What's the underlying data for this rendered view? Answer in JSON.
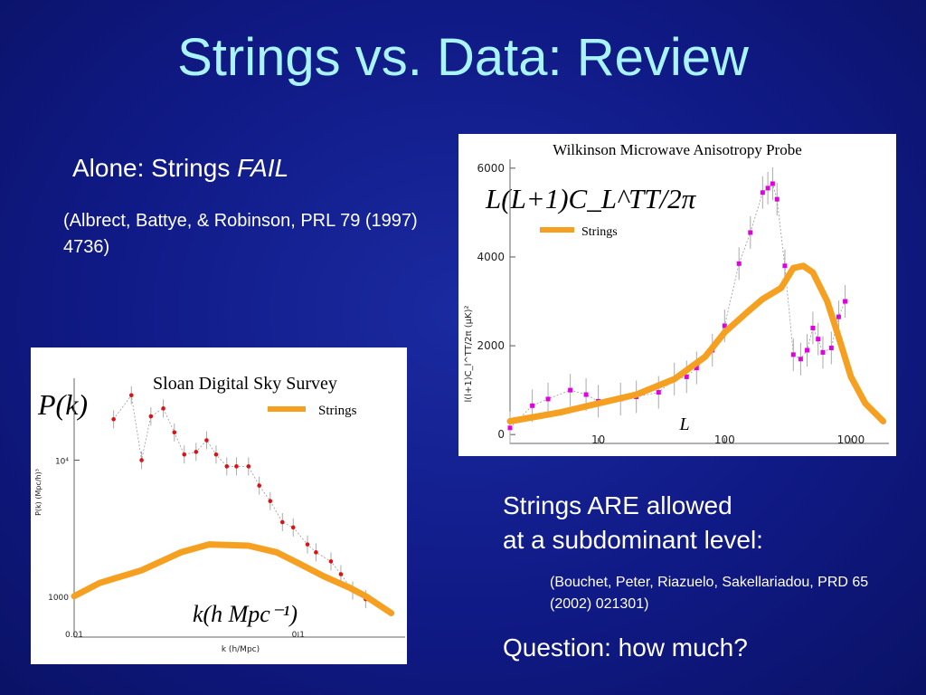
{
  "slide": {
    "title": "Strings vs. Data: Review",
    "alone_prefix": "Alone: Strings ",
    "alone_fail": "FAIL",
    "citation_1": "(Albrect, Battye, & Robinson, PRL 79 (1997) 4736)",
    "allowed_line1": "Strings ARE allowed",
    "allowed_line2": "at a subdominant level:",
    "citation_2": "(Bouchet, Peter, Riazuelo, Sakellariadou, PRD 65 (2002) 021301)",
    "question": "Question: how much?"
  },
  "colors": {
    "background": "#101a86",
    "title": "#a8f4f8",
    "strings_curve": "#f5a020",
    "wmap_points": "#e000e0",
    "sdss_points": "#e01010"
  },
  "chart_data": [
    {
      "type": "line",
      "title": "Wilkinson Microwave Anisotropy Probe",
      "ylabel_formula": "L(L+1)C_L^TT/2π",
      "ylabel_axis": "l(l+1)C_l^TT/2π (μK)²",
      "xlabel": "L",
      "xscale": "log",
      "xlim": [
        2,
        2000
      ],
      "ylim": [
        -200,
        6200
      ],
      "x_ticks": [
        "10",
        "100",
        "1000"
      ],
      "y_ticks": [
        "0",
        "2000",
        "4000",
        "6000"
      ],
      "legend": [
        "Strings"
      ],
      "legend_position": "top-left",
      "series": [
        {
          "name": "Strings",
          "x": [
            2,
            5,
            10,
            20,
            40,
            70,
            100,
            150,
            200,
            280,
            350,
            420,
            500,
            650,
            800,
            1000,
            1300,
            1800
          ],
          "y": [
            300,
            500,
            700,
            900,
            1250,
            1750,
            2300,
            2750,
            3050,
            3300,
            3750,
            3800,
            3650,
            3000,
            2200,
            1300,
            700,
            300
          ]
        },
        {
          "x": [
            2,
            3,
            4,
            6,
            8,
            10,
            15,
            20,
            30,
            40,
            50,
            60,
            80,
            100,
            130,
            160,
            200,
            220,
            240,
            260,
            300,
            350,
            400,
            450,
            500,
            550,
            600,
            700,
            800,
            900
          ],
          "y": [
            150,
            650,
            800,
            1000,
            900,
            750,
            800,
            850,
            950,
            1250,
            1300,
            1500,
            1900,
            2450,
            3850,
            4550,
            5450,
            5550,
            5650,
            5300,
            3800,
            1800,
            1700,
            1900,
            2400,
            2150,
            1850,
            1950,
            2650,
            3000
          ]
        }
      ]
    },
    {
      "type": "line",
      "title": "Sloan Digital Sky Survey",
      "ylabel_formula": "P(k)",
      "ylabel_axis": "P(k) (Mpc/h)³",
      "xlabel_formula": "k(h Mpc⁻¹)",
      "xlabel_axis": "k (h/Mpc)",
      "xscale": "log",
      "yscale": "log",
      "xlim": [
        0.01,
        0.3
      ],
      "ylim": [
        500,
        40000
      ],
      "x_ticks": [
        "0.01",
        "0.1"
      ],
      "y_ticks": [
        "1000",
        "10⁴"
      ],
      "legend": [
        "Strings"
      ],
      "legend_position": "top-right",
      "series": [
        {
          "name": "Strings",
          "x": [
            0.01,
            0.013,
            0.02,
            0.03,
            0.04,
            0.06,
            0.08,
            0.1,
            0.13,
            0.17,
            0.2,
            0.26
          ],
          "y": [
            1000,
            1250,
            1550,
            2100,
            2400,
            2350,
            2100,
            1750,
            1400,
            1150,
            1000,
            750
          ]
        },
        {
          "x": [
            0.015,
            0.018,
            0.02,
            0.022,
            0.025,
            0.028,
            0.031,
            0.035,
            0.039,
            0.043,
            0.048,
            0.053,
            0.06,
            0.067,
            0.075,
            0.085,
            0.095,
            0.11,
            0.12,
            0.14,
            0.155,
            0.175,
            0.2
          ],
          "y": [
            20000,
            30000,
            10000,
            21000,
            24000,
            16000,
            11000,
            11500,
            14000,
            11000,
            9000,
            9000,
            9000,
            6500,
            5000,
            3500,
            3200,
            2400,
            2100,
            1800,
            1450,
            1100,
            950
          ]
        }
      ]
    }
  ]
}
